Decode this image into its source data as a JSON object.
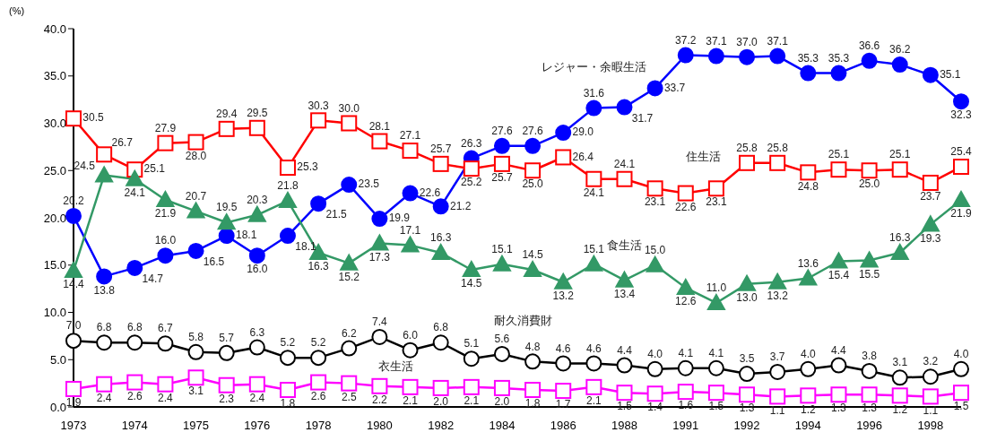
{
  "chart_data": {
    "type": "line",
    "ylabel": "(%)",
    "categories": [
      "1973",
      null,
      "1974",
      null,
      "1975",
      null,
      "1976",
      null,
      "1978",
      null,
      "1980",
      null,
      "1982",
      null,
      "1984",
      null,
      "1986",
      null,
      "1988",
      null,
      "1991",
      null,
      "1992",
      null,
      "1994",
      null,
      "1996",
      null,
      "1998",
      null
    ],
    "ylim": [
      0,
      40
    ],
    "yticks": [
      {
        "value": 0,
        "label": "0.0"
      },
      {
        "value": 5,
        "label": "5.0"
      },
      {
        "value": 10,
        "label": "10.0"
      },
      {
        "value": 15,
        "label": "15.0"
      },
      {
        "value": 20,
        "label": "20.0"
      },
      {
        "value": 25,
        "label": "25.0"
      },
      {
        "value": 30,
        "label": "30.0"
      },
      {
        "value": 35,
        "label": "35.0"
      },
      {
        "value": 40,
        "label": "40.0"
      }
    ],
    "series": [
      {
        "name": "レジャー・余暇生活",
        "color": "#0000ff",
        "marker": "circle",
        "values": [
          20.2,
          13.8,
          14.7,
          16.0,
          16.5,
          18.1,
          16.0,
          18.1,
          21.5,
          23.5,
          19.9,
          22.6,
          21.2,
          26.3,
          27.6,
          27.6,
          29.0,
          31.6,
          31.7,
          33.7,
          37.2,
          37.1,
          37.0,
          37.1,
          35.3,
          35.3,
          36.6,
          36.2,
          35.1,
          32.3
        ],
        "value_labels": [
          "20.2",
          "13.8",
          "14.7",
          "16.0",
          "16.5",
          "18.1",
          "16.0",
          "18.1",
          "21.5",
          "23.5",
          "19.9",
          "22.6",
          "21.2",
          "26.3",
          "27.6",
          "27.6",
          "29.0",
          "31.6",
          "31.7",
          "33.7",
          "37.2",
          "37.1",
          "37.0",
          "37.1",
          "35.3",
          "35.3",
          "36.6",
          "36.2",
          "35.1",
          "32.3"
        ]
      },
      {
        "name": "住生活",
        "color": "#ff0000",
        "marker": "square",
        "values": [
          30.5,
          26.7,
          25.1,
          27.9,
          28.0,
          29.4,
          29.5,
          25.3,
          30.3,
          30.0,
          28.1,
          27.1,
          25.7,
          25.2,
          25.7,
          25.0,
          26.4,
          24.1,
          24.1,
          23.1,
          22.6,
          23.1,
          25.8,
          25.8,
          24.8,
          25.1,
          25.0,
          25.1,
          23.7,
          25.4
        ],
        "value_labels": [
          "30.5",
          "26.7",
          "25.1",
          "27.9",
          "28.0",
          "29.4",
          "29.5",
          "25.3",
          "30.3",
          "30.0",
          "28.1",
          "27.1",
          "25.7",
          "25.2",
          "25.7",
          "25.0",
          "26.4",
          "24.1",
          "24.1",
          "23.1",
          "22.6",
          "23.1",
          "25.8",
          "25.8",
          "24.8",
          "25.1",
          "25.0",
          "25.1",
          "23.7",
          "25.4"
        ]
      },
      {
        "name": "食生活",
        "color": "#339966",
        "marker": "triangle",
        "values": [
          14.4,
          24.5,
          24.1,
          21.9,
          20.7,
          19.5,
          20.3,
          21.8,
          16.3,
          15.2,
          17.3,
          17.1,
          16.3,
          14.5,
          15.1,
          14.5,
          13.2,
          15.1,
          13.4,
          15.0,
          12.6,
          11.0,
          13.0,
          13.2,
          13.6,
          15.4,
          15.5,
          16.3,
          19.3,
          21.9
        ],
        "value_labels": [
          "14.4",
          "24.5",
          "24.1",
          "21.9",
          "20.7",
          "19.5",
          "20.3",
          "21.8",
          "16.3",
          "15.2",
          "17.3",
          "17.1",
          "16.3",
          "14.5",
          "15.1",
          "14.5",
          "13.2",
          "15.1",
          "13.4",
          "15.0",
          "12.6",
          "11.0",
          "13.0",
          "13.2",
          "13.6",
          "15.4",
          "15.5",
          "16.3",
          "19.3",
          "21.9"
        ]
      },
      {
        "name": "耐久消費財",
        "color": "#000000",
        "marker": "circle",
        "values": [
          7.0,
          6.8,
          6.8,
          6.7,
          5.8,
          5.7,
          6.3,
          5.2,
          5.2,
          6.2,
          7.4,
          6.0,
          6.8,
          5.1,
          5.6,
          4.8,
          4.6,
          4.6,
          4.4,
          4.0,
          4.1,
          4.1,
          3.5,
          3.7,
          4.0,
          4.4,
          3.8,
          3.1,
          3.2,
          4.0
        ],
        "value_labels": [
          "7.0",
          "6.8",
          "6.8",
          "6.7",
          "5.8",
          "5.7",
          "6.3",
          "5.2",
          "5.2",
          "6.2",
          "7.4",
          "6.0",
          "6.8",
          "5.1",
          "5.6",
          "4.8",
          "4.6",
          "4.6",
          "4.4",
          "4.0",
          "4.1",
          "4.1",
          "3.5",
          "3.7",
          "4.0",
          "4.4",
          "3.8",
          "3.1",
          "3.2",
          "4.0"
        ]
      },
      {
        "name": "衣生活",
        "color": "#ff00ff",
        "marker": "square",
        "values": [
          1.9,
          2.4,
          2.6,
          2.4,
          3.1,
          2.3,
          2.4,
          1.8,
          2.6,
          2.5,
          2.2,
          2.1,
          2.0,
          2.1,
          2.0,
          1.8,
          1.7,
          2.1,
          1.5,
          1.4,
          1.6,
          1.5,
          1.3,
          1.1,
          1.2,
          1.3,
          1.3,
          1.2,
          1.1,
          1.5
        ],
        "value_labels": [
          "1.9",
          "2.4",
          "2.6",
          "2.4",
          "3.1",
          "2.3",
          "2.4",
          "1.8",
          "2.6",
          "2.5",
          "2.2",
          "2.1",
          "2.0",
          "2.1",
          "2.0",
          "1.8",
          "1.7",
          "2.1",
          "1.5",
          "1.4",
          "1.6",
          "1.5",
          "1.3",
          "1.1",
          "1.2",
          "1.3",
          "1.3",
          "1.2",
          "1.1",
          "1.5"
        ]
      }
    ],
    "grid": false,
    "legend": false,
    "line_style": "solid"
  }
}
